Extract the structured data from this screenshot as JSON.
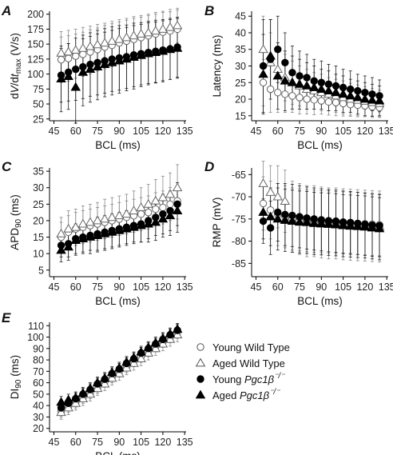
{
  "legend": {
    "entries": [
      {
        "label": "Young Wild Type",
        "marker": "circle",
        "filled": false
      },
      {
        "label": "Aged Wild Type",
        "marker": "triangle",
        "filled": false
      },
      {
        "label": "Young Pgc1β⁻/⁻",
        "marker": "circle",
        "filled": true
      },
      {
        "label": "Aged Pgc1β⁻/⁻",
        "marker": "triangle",
        "filled": true
      }
    ]
  },
  "chart_data": [
    {
      "panel": "A",
      "type": "scatter",
      "xlabel": "BCL (ms)",
      "ylabel": "dV/dt_max (V/s)",
      "xlim": [
        42,
        136
      ],
      "ylim": [
        22,
        205
      ],
      "xticks": [
        45,
        60,
        75,
        90,
        105,
        120,
        135
      ],
      "yticks": [
        25,
        50,
        75,
        100,
        125,
        150,
        175,
        200
      ],
      "x": [
        50,
        55,
        60,
        65,
        70,
        75,
        80,
        85,
        90,
        95,
        100,
        105,
        110,
        115,
        120,
        125,
        130
      ],
      "series": [
        {
          "name": "Young Wild Type",
          "values": [
            124,
            126,
            130,
            133,
            137,
            141,
            145,
            148,
            152,
            155,
            158,
            161,
            164,
            167,
            170,
            172,
            175
          ],
          "err": [
            38,
            38,
            37,
            37,
            37,
            36,
            36,
            36,
            35,
            35,
            35,
            34,
            34,
            33,
            33,
            32,
            32
          ]
        },
        {
          "name": "Aged Wild Type",
          "values": [
            135,
            137,
            140,
            143,
            146,
            149,
            152,
            155,
            158,
            161,
            164,
            167,
            169,
            172,
            175,
            178,
            181
          ],
          "err": [
            36,
            36,
            35,
            35,
            34,
            34,
            33,
            33,
            33,
            32,
            32,
            31,
            31,
            31,
            30,
            30,
            29
          ]
        },
        {
          "name": "Young Pgc1β⁻/⁻",
          "values": [
            98,
            103,
            108,
            112,
            116,
            119,
            122,
            125,
            127,
            129,
            132,
            134,
            136,
            138,
            140,
            142,
            145
          ],
          "err": [
            45,
            48,
            52,
            53,
            53,
            54,
            54,
            54,
            54,
            53,
            53,
            52,
            52,
            52,
            51,
            51,
            50
          ]
        },
        {
          "name": "Aged Pgc1β⁻/⁻",
          "values": [
            92,
            96,
            78,
            103,
            108,
            112,
            116,
            119,
            122,
            125,
            128,
            131,
            134,
            136,
            138,
            141,
            143
          ],
          "err": [
            55,
            55,
            60,
            56,
            55,
            55,
            54,
            54,
            54,
            53,
            53,
            52,
            52,
            51,
            51,
            50,
            50
          ]
        }
      ]
    },
    {
      "panel": "B",
      "type": "scatter",
      "xlabel": "BCL (ms)",
      "ylabel": "Latency (ms)",
      "xlim": [
        42,
        136
      ],
      "ylim": [
        13.5,
        46.5
      ],
      "xticks": [
        45,
        60,
        75,
        90,
        105,
        120,
        135
      ],
      "yticks": [
        15,
        20,
        25,
        30,
        35,
        40,
        45
      ],
      "x": [
        50,
        55,
        60,
        65,
        70,
        75,
        80,
        85,
        90,
        95,
        100,
        105,
        110,
        115,
        120,
        125,
        130
      ],
      "series": [
        {
          "name": "Young Wild Type",
          "values": [
            25,
            23,
            22,
            21.5,
            21,
            20.5,
            20,
            19.8,
            19.5,
            19.2,
            19,
            18.7,
            18.4,
            18.2,
            18,
            17.7,
            17.5
          ],
          "err": [
            7,
            7,
            6,
            5.5,
            5,
            5,
            4.5,
            4.5,
            4,
            4,
            4,
            3.8,
            3.6,
            3.5,
            3.3,
            3.2,
            3
          ]
        },
        {
          "name": "Aged Wild Type",
          "values": [
            35,
            31,
            29,
            26.5,
            25,
            24,
            23,
            22.5,
            22,
            21.5,
            21,
            20.5,
            20,
            19.7,
            19.4,
            19,
            18.7
          ],
          "err": [
            10,
            9,
            8,
            7,
            6.5,
            6,
            6,
            5.5,
            5.5,
            5,
            5,
            5,
            4.8,
            4.6,
            4.4,
            4.2,
            4
          ]
        },
        {
          "name": "Young Pgc1β⁻/⁻",
          "values": [
            30,
            32,
            35,
            31,
            28,
            27,
            26.5,
            25.5,
            25,
            24.5,
            24,
            23.5,
            23,
            22.5,
            22,
            21.5,
            21
          ],
          "err": [
            14,
            12,
            10,
            9,
            8,
            7.5,
            7,
            6.5,
            6.5,
            6,
            6,
            5.5,
            5.5,
            5,
            5,
            5,
            4.8
          ]
        },
        {
          "name": "Aged Pgc1β⁻/⁻",
          "values": [
            27.5,
            33,
            27,
            25.5,
            25,
            24.5,
            24,
            23.5,
            23,
            22.5,
            22,
            21.5,
            21,
            20.5,
            20,
            19.7,
            19.5
          ],
          "err": [
            12,
            11,
            10,
            9,
            8,
            7.5,
            7,
            6.5,
            6,
            6,
            5.5,
            5.5,
            5,
            5,
            5,
            4.8,
            4.5
          ]
        }
      ]
    },
    {
      "panel": "C",
      "type": "scatter",
      "xlabel": "BCL (ms)",
      "ylabel": "APD90 (ms)",
      "xlim": [
        42,
        136
      ],
      "ylim": [
        3,
        36
      ],
      "xticks": [
        45,
        60,
        75,
        90,
        105,
        120,
        135
      ],
      "yticks": [
        5,
        10,
        15,
        20,
        25,
        30,
        35
      ],
      "x": [
        50,
        55,
        60,
        65,
        70,
        75,
        80,
        85,
        90,
        95,
        100,
        105,
        110,
        115,
        120,
        125,
        130
      ],
      "series": [
        {
          "name": "Young Wild Type",
          "values": [
            15,
            16.5,
            17.5,
            18,
            18.5,
            19,
            19.5,
            20,
            20.5,
            21,
            21.5,
            22,
            22.5,
            23.5,
            24,
            25,
            26
          ],
          "err": [
            4.5,
            5,
            5,
            5,
            5,
            5,
            5,
            5,
            5,
            5,
            5,
            5,
            5,
            5,
            5,
            5,
            5.5
          ]
        },
        {
          "name": "Aged Wild Type",
          "values": [
            16,
            17.5,
            18,
            19,
            19.5,
            20,
            20.5,
            21,
            21.5,
            22,
            23,
            24,
            25,
            26,
            27,
            28,
            30
          ],
          "err": [
            5,
            5.5,
            5.5,
            5.5,
            5.5,
            5.5,
            6,
            6,
            6,
            6,
            6,
            6,
            6,
            6.5,
            6.5,
            6.5,
            7
          ]
        },
        {
          "name": "Young Pgc1β⁻/⁻",
          "values": [
            12.5,
            13,
            14.5,
            15,
            15.5,
            16,
            16.5,
            17,
            17.5,
            18,
            18.5,
            19,
            20,
            21,
            22,
            23,
            25
          ],
          "err": [
            3.5,
            4,
            4.5,
            4.5,
            4.5,
            5,
            5,
            5,
            5,
            5,
            5,
            5.5,
            5.5,
            5.5,
            6,
            6,
            6.5
          ]
        },
        {
          "name": "Aged Pgc1β⁻/⁻",
          "values": [
            11,
            12,
            14,
            14.5,
            15,
            15.5,
            16,
            16.5,
            17,
            17.5,
            18,
            18.5,
            19,
            19.5,
            20.5,
            21.5,
            23
          ],
          "err": [
            3.5,
            4,
            4.5,
            4.5,
            5,
            5,
            5,
            5,
            5,
            5,
            5,
            5,
            5.5,
            5.5,
            5.5,
            6,
            6.5
          ]
        }
      ]
    },
    {
      "panel": "D",
      "type": "scatter",
      "xlabel": "BCL (ms)",
      "ylabel": "RMP (mV)",
      "xlim": [
        42,
        136
      ],
      "ylim": [
        -88,
        -63.5
      ],
      "xticks": [
        45,
        60,
        75,
        90,
        105,
        120,
        135
      ],
      "yticks": [
        -65,
        -70,
        -75,
        -80,
        -85
      ],
      "x": [
        50,
        55,
        60,
        65,
        70,
        75,
        80,
        85,
        90,
        95,
        100,
        105,
        110,
        115,
        120,
        125,
        130
      ],
      "series": [
        {
          "name": "Young Wild Type",
          "values": [
            -71.5,
            -73,
            -74,
            -74.5,
            -75,
            -75.2,
            -75.4,
            -75.5,
            -75.6,
            -75.7,
            -75.8,
            -75.9,
            -76,
            -76,
            -76.1,
            -76.2,
            -76.3
          ],
          "err": [
            6,
            6.5,
            7,
            7,
            7,
            7,
            7,
            7,
            7,
            7,
            7,
            7,
            7,
            7,
            7,
            7,
            7
          ]
        },
        {
          "name": "Aged Wild Type",
          "values": [
            -67,
            -69,
            -70,
            -71,
            -74.5,
            -75,
            -75.5,
            -75.5,
            -75.8,
            -76,
            -76,
            -76.2,
            -76.3,
            -76.4,
            -76.5,
            -76.6,
            -76.7
          ],
          "err": [
            5,
            6,
            7,
            7,
            8,
            8,
            8,
            8,
            8,
            8,
            8,
            8,
            8,
            8,
            8,
            8,
            8
          ]
        },
        {
          "name": "Young Pgc1β⁻/⁻",
          "values": [
            -75.5,
            -77,
            -73.5,
            -74,
            -74.2,
            -74.5,
            -74.8,
            -75,
            -75.2,
            -75.4,
            -75.5,
            -75.7,
            -75.8,
            -76,
            -76.2,
            -76.4,
            -76.5
          ],
          "err": [
            5,
            6,
            6.5,
            7,
            7,
            7,
            7,
            7,
            7,
            7,
            7,
            7,
            7,
            7,
            7,
            7,
            7
          ]
        },
        {
          "name": "Aged Pgc1β⁻/⁻",
          "values": [
            -73.5,
            -74.5,
            -75,
            -75.3,
            -75.5,
            -75.7,
            -75.8,
            -76,
            -76.1,
            -76.2,
            -76.3,
            -76.5,
            -76.6,
            -76.7,
            -76.8,
            -77,
            -77.2
          ],
          "err": [
            6,
            6.5,
            7,
            7,
            7,
            7,
            7,
            7,
            7,
            7,
            7,
            7,
            7,
            7,
            7,
            7,
            7
          ]
        }
      ]
    },
    {
      "panel": "E",
      "type": "scatter",
      "xlabel": "BCL (ms)",
      "ylabel": "DI90 (ms)",
      "xlim": [
        42,
        136
      ],
      "ylim": [
        17,
        113
      ],
      "xticks": [
        45,
        60,
        75,
        90,
        105,
        120,
        135
      ],
      "yticks": [
        20,
        30,
        40,
        50,
        60,
        70,
        80,
        90,
        100,
        110
      ],
      "x": [
        50,
        55,
        60,
        65,
        70,
        75,
        80,
        85,
        90,
        95,
        100,
        105,
        110,
        115,
        120,
        125,
        130
      ],
      "series": [
        {
          "name": "Young Wild Type",
          "values": [
            35,
            39,
            43,
            47,
            51,
            56,
            61,
            65,
            70,
            74,
            79,
            83,
            88,
            92,
            96,
            100,
            104
          ],
          "err": [
            5,
            5,
            5,
            5,
            5,
            5,
            5,
            5,
            5,
            5,
            5,
            5,
            5,
            5,
            5,
            5,
            5
          ]
        },
        {
          "name": "Aged Wild Type",
          "values": [
            34,
            38,
            42,
            46,
            50,
            55,
            59,
            64,
            68,
            73,
            77,
            81,
            86,
            90,
            94,
            98,
            102
          ],
          "err": [
            6,
            6,
            6,
            6,
            6,
            6,
            6,
            6,
            6,
            6,
            6,
            6,
            6,
            6,
            6,
            6,
            6
          ]
        },
        {
          "name": "Young Pgc1β⁻/⁻",
          "values": [
            38,
            42,
            46,
            50,
            54,
            59,
            63,
            68,
            72,
            77,
            81,
            86,
            90,
            94,
            98,
            102,
            106
          ],
          "err": [
            5,
            5,
            5,
            5,
            5,
            5,
            5,
            5,
            5,
            5,
            5,
            5,
            5,
            5,
            5,
            5,
            5
          ]
        },
        {
          "name": "Aged Pgc1β⁻/⁻",
          "values": [
            43,
            45,
            47,
            51,
            55,
            60,
            64,
            69,
            73,
            78,
            82,
            87,
            91,
            95,
            99,
            103,
            107
          ],
          "err": [
            5,
            5,
            5,
            5,
            5,
            5,
            5,
            5,
            5,
            5,
            5,
            5,
            5,
            5,
            5,
            5,
            5
          ]
        }
      ]
    }
  ]
}
